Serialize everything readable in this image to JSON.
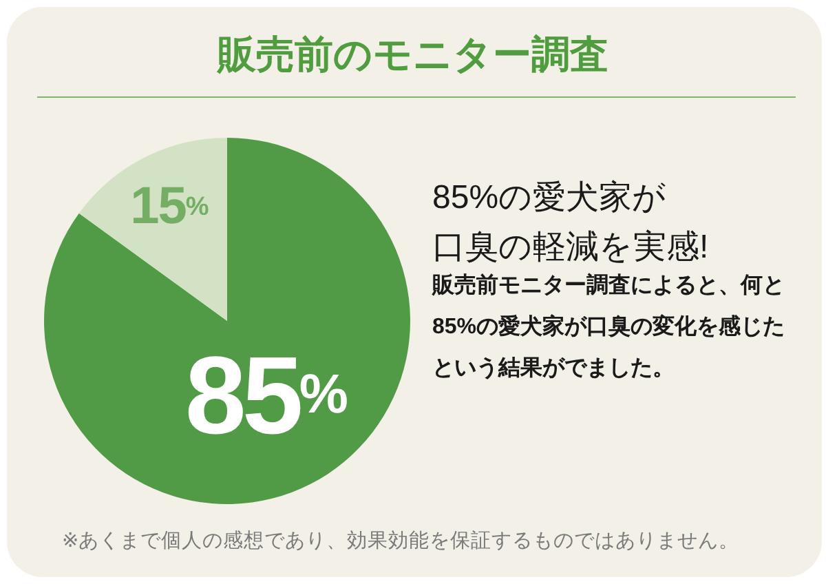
{
  "chart_data": {
    "type": "pie",
    "title": "販売前のモニター調査",
    "subtitle": "85%の愛犬家が口臭の軽減を実感!",
    "categories": [
      null,
      null
    ],
    "values": [
      85,
      15
    ],
    "colors": [
      "#519b47",
      "#d3e2c5"
    ],
    "value_labels": [
      "85%",
      "15%"
    ],
    "annotations": [
      "販売前モニター調査によると、何と85%の愛犬家が口臭の変化を感じたという結果がでました。",
      "※あくまで個人の感想であり、効果効能を保証するものではありません。"
    ]
  }
}
